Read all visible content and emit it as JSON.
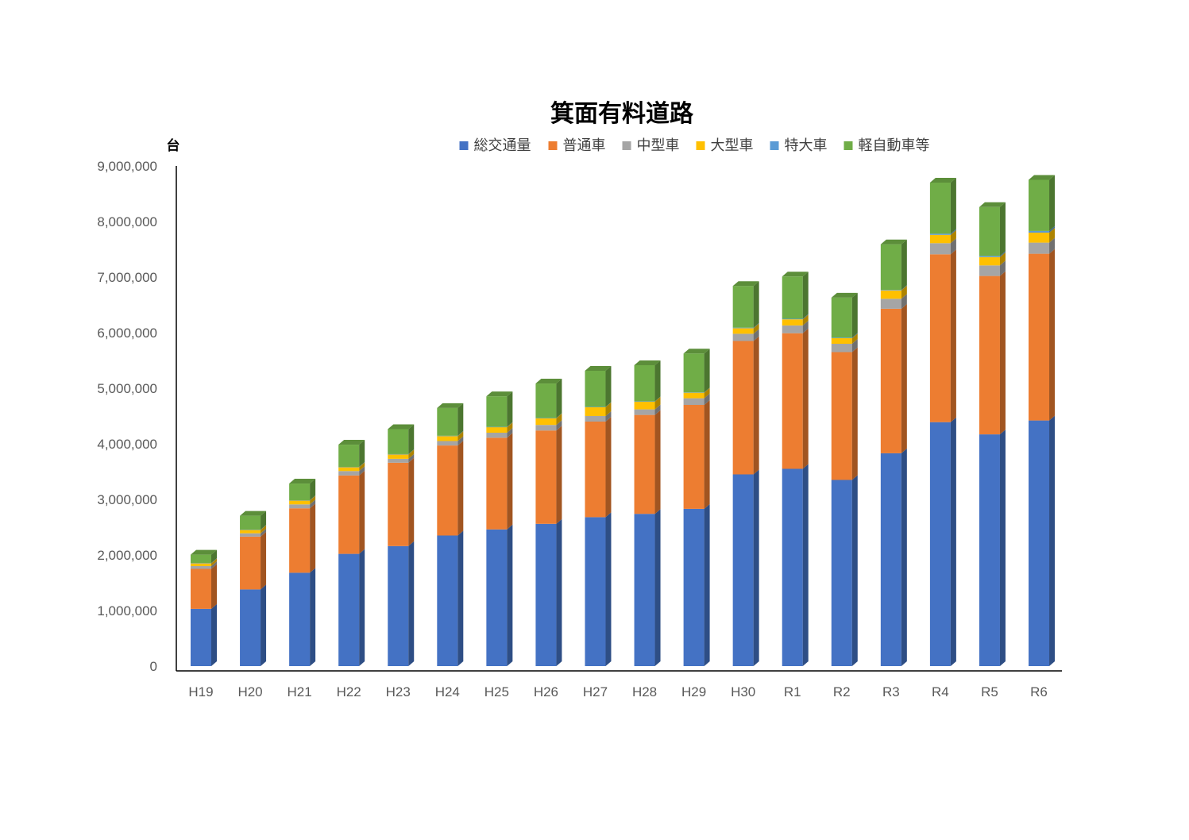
{
  "chart_data": {
    "type": "bar",
    "stacked": true,
    "three_d": true,
    "title": "箕面有料道路",
    "ylabel": "台",
    "xlabel": "",
    "ylim": [
      0,
      9000000
    ],
    "y_ticks": [
      "0",
      "1,000,000",
      "2,000,000",
      "3,000,000",
      "4,000,000",
      "5,000,000",
      "6,000,000",
      "7,000,000",
      "8,000,000",
      "9,000,000"
    ],
    "categories": [
      "H19",
      "H20",
      "H21",
      "H22",
      "H23",
      "H24",
      "H25",
      "H26",
      "H27",
      "H28",
      "H29",
      "H30",
      "R1",
      "R2",
      "R3",
      "R4",
      "R5",
      "R6"
    ],
    "legend_position": "top",
    "grid": false,
    "series": [
      {
        "name": "総交通量",
        "color": "#4472C4",
        "values": [
          1030000,
          1380000,
          1680000,
          2020000,
          2160000,
          2350000,
          2460000,
          2560000,
          2680000,
          2740000,
          2830000,
          3450000,
          3550000,
          3350000,
          3830000,
          4390000,
          4170000,
          4420000
        ]
      },
      {
        "name": "普通車",
        "color": "#ED7D31",
        "values": [
          720000,
          950000,
          1160000,
          1410000,
          1500000,
          1620000,
          1650000,
          1680000,
          1720000,
          1780000,
          1870000,
          2400000,
          2440000,
          2300000,
          2600000,
          3020000,
          2850000,
          3000000
        ]
      },
      {
        "name": "中型車",
        "color": "#A5A5A5",
        "values": [
          50000,
          60000,
          70000,
          80000,
          70000,
          80000,
          90000,
          100000,
          100000,
          100000,
          120000,
          130000,
          140000,
          150000,
          180000,
          200000,
          190000,
          200000
        ]
      },
      {
        "name": "大型車",
        "color": "#FFC000",
        "values": [
          50000,
          60000,
          70000,
          70000,
          80000,
          90000,
          100000,
          120000,
          160000,
          140000,
          100000,
          100000,
          110000,
          100000,
          150000,
          150000,
          150000,
          180000
        ]
      },
      {
        "name": "特大車",
        "color": "#5B9BD5",
        "values": [
          5000,
          5000,
          5000,
          5000,
          5000,
          5000,
          5000,
          5000,
          5000,
          5000,
          5000,
          10000,
          10000,
          10000,
          10000,
          20000,
          20000,
          30000
        ]
      },
      {
        "name": "軽自動車等",
        "color": "#70AD47",
        "values": [
          150000,
          250000,
          300000,
          400000,
          450000,
          500000,
          550000,
          620000,
          650000,
          650000,
          700000,
          750000,
          760000,
          720000,
          820000,
          920000,
          880000,
          920000
        ]
      }
    ]
  }
}
